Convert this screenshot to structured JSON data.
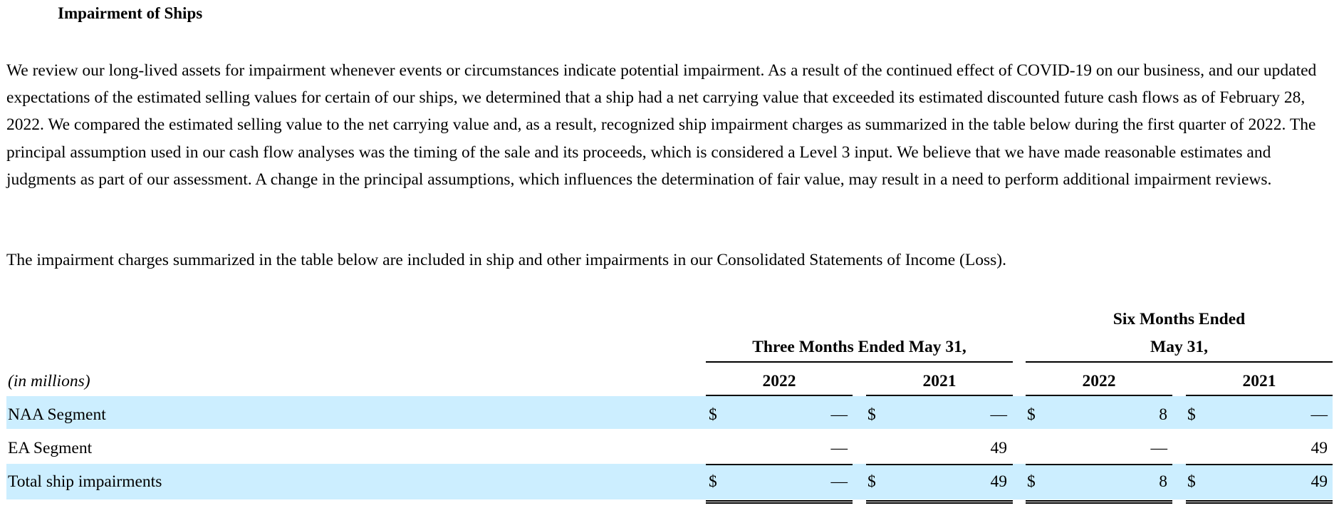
{
  "section": {
    "heading": "Impairment of Ships",
    "paragraph1": "We review our long-lived assets for impairment whenever events or circumstances indicate potential impairment. As a result of the continued effect of COVID-19 on our business, and our updated expectations of the estimated selling values for certain of our ships, we determined that a ship had a net carrying value that exceeded its estimated discounted future cash flows as of February 28, 2022. We compared the estimated selling value to the net carrying value and, as a result, recognized ship impairment charges as summarized in the table below during the first quarter of 2022. The principal assumption used in our cash flow analyses was the timing of the sale and its proceeds, which is considered a Level 3 input. We believe that we have made reasonable estimates and judgments as part of our assessment. A change in the principal assumptions, which influences the determination of fair value, may result in a need to perform additional impairment reviews.",
    "paragraph2": "The impairment charges summarized in the table below are included in ship and other impairments in our Consolidated Statements of Income (Loss)."
  },
  "table": {
    "units_label": "(in millions)",
    "group_headers": {
      "three_months": "Three Months Ended May 31,",
      "six_months_line1": "Six Months Ended",
      "six_months_line2": "May 31,"
    },
    "year_headers": [
      "2022",
      "2021",
      "2022",
      "2021"
    ],
    "currency_symbol": "$",
    "rows": [
      {
        "label": "NAA Segment",
        "values": [
          "—",
          "—",
          "8",
          "—"
        ],
        "show_currency": true,
        "highlight": true
      },
      {
        "label": "EA Segment",
        "values": [
          "—",
          "49",
          "—",
          "49"
        ],
        "show_currency": false,
        "highlight": false
      },
      {
        "label": "Total ship impairments",
        "values": [
          "—",
          "49",
          "8",
          "49"
        ],
        "show_currency": true,
        "highlight": true
      }
    ]
  }
}
